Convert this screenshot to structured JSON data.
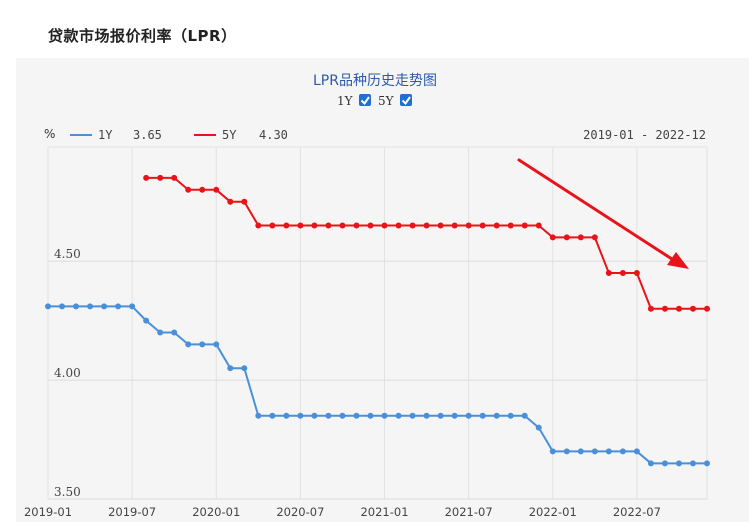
{
  "page": {
    "heading": "贷款市场报价利率（LPR）"
  },
  "chart_data": {
    "type": "line",
    "title": "LPR品种历史走势图",
    "checkbox_1y_label": "1Y",
    "checkbox_5y_label": "5Y",
    "checkbox_1y_checked": true,
    "checkbox_5y_checked": true,
    "ylabel": "%",
    "date_range": "2019-01 - 2022-12",
    "legend": [
      {
        "name": "1Y",
        "value": "3.65",
        "color": "#4a90d9"
      },
      {
        "name": "5Y",
        "value": "4.30",
        "color": "#e8141a"
      }
    ],
    "yticks": [
      {
        "value": 3.5,
        "label": "3.50"
      },
      {
        "value": 4.0,
        "label": "4.00"
      },
      {
        "value": 4.5,
        "label": "4.50"
      }
    ],
    "ylim": [
      3.5,
      4.98
    ],
    "xticks": [
      "2019-01",
      "2019-07",
      "2020-01",
      "2020-07",
      "2021-01",
      "2021-07",
      "2022-01",
      "2022-07"
    ],
    "x_months": [
      "2019-01",
      "2019-02",
      "2019-03",
      "2019-04",
      "2019-05",
      "2019-06",
      "2019-07",
      "2019-08",
      "2019-09",
      "2019-10",
      "2019-11",
      "2019-12",
      "2020-01",
      "2020-02",
      "2020-03",
      "2020-04",
      "2020-05",
      "2020-06",
      "2020-07",
      "2020-08",
      "2020-09",
      "2020-10",
      "2020-11",
      "2020-12",
      "2021-01",
      "2021-02",
      "2021-03",
      "2021-04",
      "2021-05",
      "2021-06",
      "2021-07",
      "2021-08",
      "2021-09",
      "2021-10",
      "2021-11",
      "2021-12",
      "2022-01",
      "2022-02",
      "2022-03",
      "2022-04",
      "2022-05",
      "2022-06",
      "2022-07",
      "2022-08",
      "2022-09",
      "2022-10",
      "2022-11",
      "2022-12"
    ],
    "series": [
      {
        "name": "1Y",
        "color": "#4a90d9",
        "values": [
          4.31,
          4.31,
          4.31,
          4.31,
          4.31,
          4.31,
          4.31,
          4.25,
          4.2,
          4.2,
          4.15,
          4.15,
          4.15,
          4.05,
          4.05,
          3.85,
          3.85,
          3.85,
          3.85,
          3.85,
          3.85,
          3.85,
          3.85,
          3.85,
          3.85,
          3.85,
          3.85,
          3.85,
          3.85,
          3.85,
          3.85,
          3.85,
          3.85,
          3.85,
          3.85,
          3.8,
          3.7,
          3.7,
          3.7,
          3.7,
          3.7,
          3.7,
          3.7,
          3.65,
          3.65,
          3.65,
          3.65,
          3.65
        ]
      },
      {
        "name": "5Y",
        "color": "#e8141a",
        "values": [
          null,
          null,
          null,
          null,
          null,
          null,
          null,
          4.85,
          4.85,
          4.85,
          4.8,
          4.8,
          4.8,
          4.75,
          4.75,
          4.65,
          4.65,
          4.65,
          4.65,
          4.65,
          4.65,
          4.65,
          4.65,
          4.65,
          4.65,
          4.65,
          4.65,
          4.65,
          4.65,
          4.65,
          4.65,
          4.65,
          4.65,
          4.65,
          4.65,
          4.65,
          4.6,
          4.6,
          4.6,
          4.6,
          4.45,
          4.45,
          4.45,
          4.3,
          4.3,
          4.3,
          4.3,
          4.3
        ]
      }
    ],
    "grid": true,
    "annotation": "arrow pointing down toward 5Y series"
  }
}
